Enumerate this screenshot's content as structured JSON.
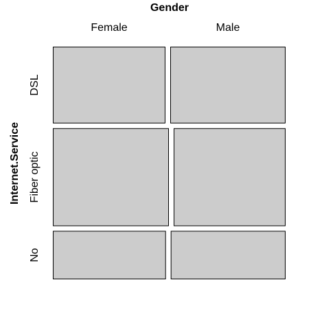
{
  "chart_data": {
    "type": "mosaic",
    "xlabel": "Gender",
    "ylabel": "Internet.Service",
    "x_categories": [
      "Female",
      "Male"
    ],
    "y_categories": [
      "DSL",
      "Fiber optic",
      "No"
    ],
    "y_shares": [
      0.344,
      0.44,
      0.216
    ],
    "x_shares_within_y": [
      [
        0.494,
        0.506
      ],
      [
        0.509,
        0.491
      ],
      [
        0.496,
        0.504
      ]
    ],
    "tile_color": "#cccccc",
    "border_color": "#000000"
  }
}
